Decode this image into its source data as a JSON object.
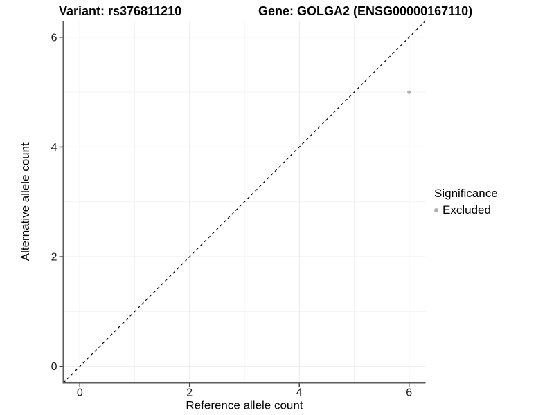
{
  "header": {
    "left_title": "Variant: rs376811210",
    "right_title": "Gene: GOLGA2 (ENSG00000167110)"
  },
  "chart_data": {
    "type": "scatter",
    "title_left": "Variant: rs376811210",
    "title_right": "Gene: GOLGA2 (ENSG00000167110)",
    "xlabel": "Reference allele count",
    "ylabel": "Alternative allele count",
    "xlim": [
      -0.3,
      6.3
    ],
    "ylim": [
      -0.3,
      6.3
    ],
    "x_ticks": [
      0,
      2,
      4,
      6
    ],
    "y_ticks": [
      0,
      2,
      4,
      6
    ],
    "x_minor_gridlines": [
      1,
      3,
      5
    ],
    "y_minor_gridlines": [
      1,
      3,
      5
    ],
    "grid": true,
    "points": [
      {
        "x": 6,
        "y": 5,
        "series": "Excluded"
      }
    ],
    "reference_line": {
      "type": "identity",
      "slope": 1,
      "intercept": 0,
      "linetype": "dashed",
      "color": "#000000"
    },
    "legend": {
      "title": "Significance",
      "position": "right",
      "items": [
        {
          "label": "Excluded",
          "color": "#aeaeae"
        }
      ]
    },
    "colors": {
      "point": "#aeaeae",
      "grid_major": "#e9e9e9",
      "grid_minor": "#f2f2f2",
      "axis_line": "#5a5a5a",
      "tick_mark": "#444444",
      "tick_label": "#1a1a1a",
      "axis_title": "#000000",
      "panel_background": "#ffffff"
    }
  }
}
